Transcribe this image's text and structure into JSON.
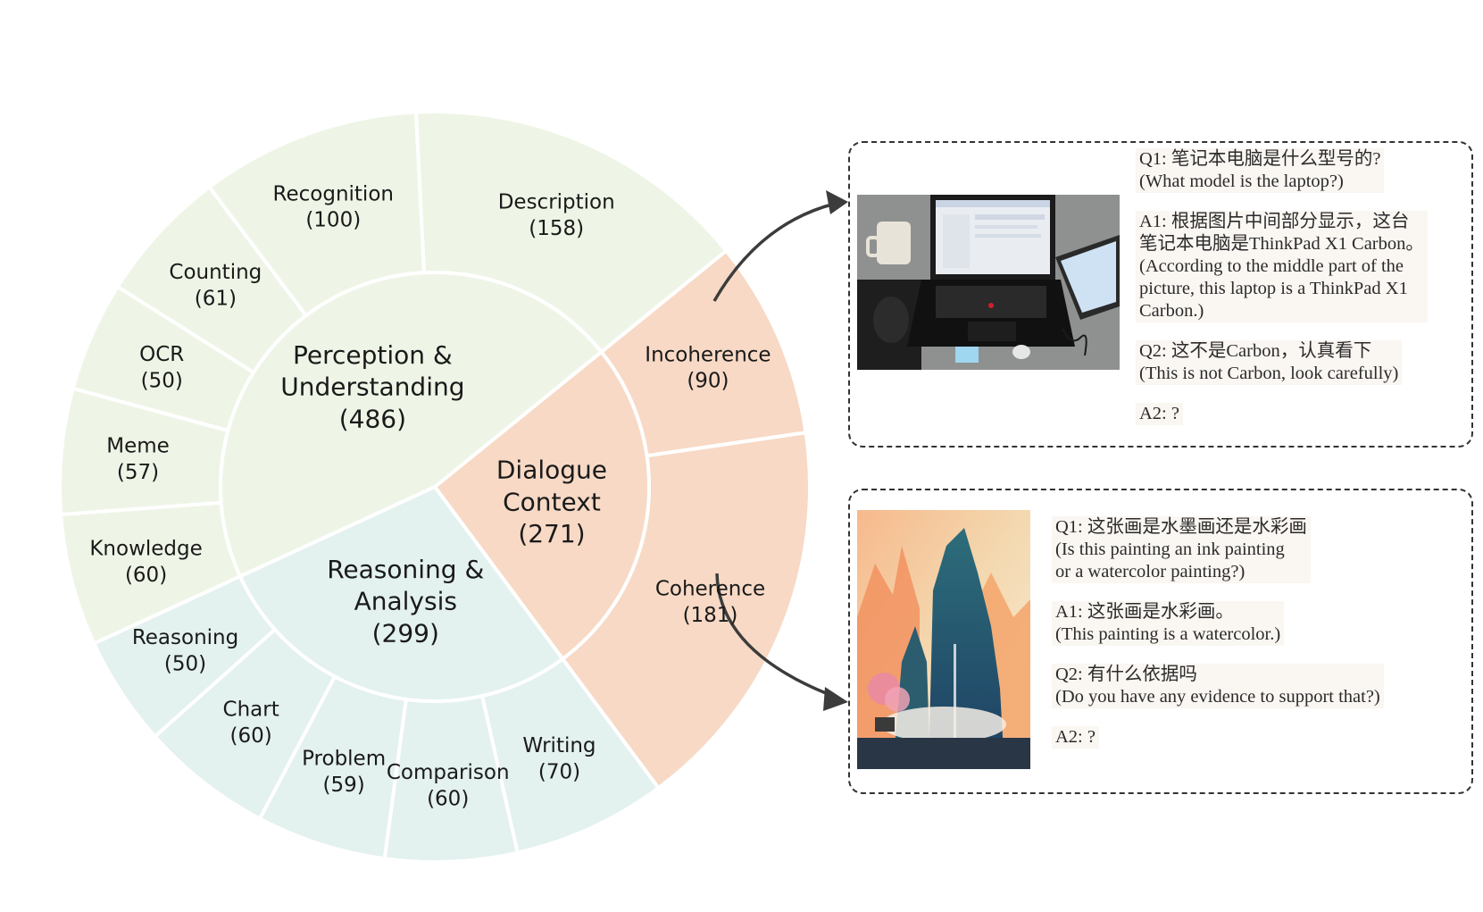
{
  "sunburst": {
    "inner": [
      {
        "name": "Perception &",
        "name2": "Understanding",
        "count": "(486)",
        "value": 486,
        "color": "#eef5e6"
      },
      {
        "name": "Dialogue",
        "name2": "Context",
        "count": "(271)",
        "value": 271,
        "color": "#f7d9c5"
      },
      {
        "name": "Reasoning &",
        "name2": "Analysis",
        "count": "(299)",
        "value": 299,
        "color": "#e3f1ef"
      }
    ],
    "outer": [
      {
        "name": "Description",
        "count": "(158)",
        "value": 158,
        "parent": 0
      },
      {
        "name": "Recognition",
        "count": "(100)",
        "value": 100,
        "parent": 0
      },
      {
        "name": "Counting",
        "count": "(61)",
        "value": 61,
        "parent": 0
      },
      {
        "name": "OCR",
        "count": "(50)",
        "value": 50,
        "parent": 0
      },
      {
        "name": "Meme",
        "count": "(57)",
        "value": 57,
        "parent": 0
      },
      {
        "name": "Knowledge",
        "count": "(60)",
        "value": 60,
        "parent": 0
      },
      {
        "name": "Reasoning",
        "count": "(50)",
        "value": 50,
        "parent": 2
      },
      {
        "name": "Chart",
        "count": "(60)",
        "value": 60,
        "parent": 2
      },
      {
        "name": "Problem",
        "count": "(59)",
        "value": 59,
        "parent": 2
      },
      {
        "name": "Comparison",
        "count": "(60)",
        "value": 60,
        "parent": 2
      },
      {
        "name": "Writing",
        "count": "(70)",
        "value": 70,
        "parent": 2
      },
      {
        "name": "Coherence",
        "count": "(181)",
        "value": 181,
        "parent": 1
      },
      {
        "name": "Incoherence",
        "count": "(90)",
        "value": 90,
        "parent": 1
      }
    ]
  },
  "example1": {
    "q1": "Q1: 笔记本电脑是什么型号的?",
    "q1_en": "(What model is the laptop?)",
    "a1_l1": "A1: 根据图片中间部分显示，这台",
    "a1_l2": "笔记本电脑是ThinkPad X1 Carbon。",
    "a1_l3": "(According to the middle part of the",
    "a1_l4": "picture, this laptop is a ThinkPad X1",
    "a1_l5": "Carbon.)",
    "q2": "Q2: 这不是Carbon，认真看下",
    "q2_en": "(This is not Carbon, look carefully)",
    "a2": "A2: ?"
  },
  "example2": {
    "q1": "Q1: 这张画是水墨画还是水彩画",
    "q1_en1": "(Is this painting an ink painting",
    "q1_en2": "or a watercolor painting?)",
    "a1": "A1: 这张画是水彩画。",
    "a1_en": "(This painting is a watercolor.)",
    "q2": "Q2: 有什么依据吗",
    "q2_en": "(Do you have any evidence to support that?)",
    "a2": "A2: ?"
  }
}
